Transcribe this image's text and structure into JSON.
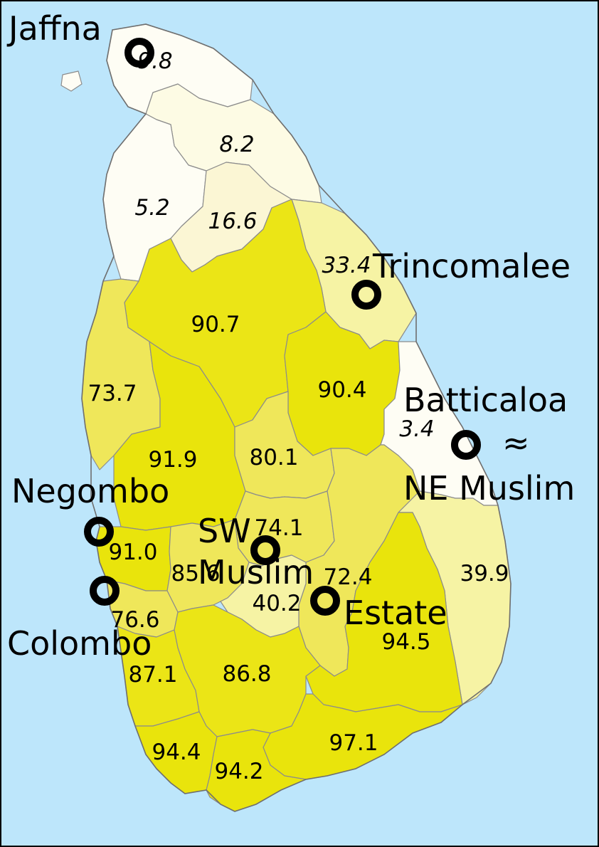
{
  "colors": {
    "sea": "#bde6fb",
    "very_low": "#fefdf4",
    "low": "#fdfbe4",
    "low_mid": "#fbf6d4",
    "mid": "#f6f3a4",
    "mid_high": "#efe75a",
    "high": "#ebe516",
    "highest": "#e9e40c"
  },
  "regions": [
    {
      "id": "jaffna",
      "value": "9.8",
      "italic": true
    },
    {
      "id": "kilinochchi-mullaitivu",
      "value": "8.2",
      "italic": true
    },
    {
      "id": "mannar",
      "value": "5.2",
      "italic": true
    },
    {
      "id": "vavuniya",
      "value": "16.6",
      "italic": true
    },
    {
      "id": "trincomalee",
      "value": "33.4",
      "italic": true
    },
    {
      "id": "anuradhapura",
      "value": "90.7",
      "italic": false
    },
    {
      "id": "puttalam",
      "value": "73.7",
      "italic": false
    },
    {
      "id": "polonnaruwa",
      "value": "90.4",
      "italic": false
    },
    {
      "id": "batticaloa",
      "value": "3.4",
      "italic": true
    },
    {
      "id": "kurunegala",
      "value": "91.9",
      "italic": false
    },
    {
      "id": "matale",
      "value": "80.1",
      "italic": false
    },
    {
      "id": "kandy",
      "value": "74.1",
      "italic": false
    },
    {
      "id": "gampaha",
      "value": "91.0",
      "italic": false
    },
    {
      "id": "kegalle",
      "value": "85.6",
      "italic": false
    },
    {
      "id": "badulla",
      "value": "72.4",
      "italic": false
    },
    {
      "id": "nuwara-eliya",
      "value": "40.2",
      "italic": false
    },
    {
      "id": "ampara",
      "value": "39.9",
      "italic": false
    },
    {
      "id": "colombo",
      "value": "76.6",
      "italic": false
    },
    {
      "id": "monaragala",
      "value": "94.5",
      "italic": false
    },
    {
      "id": "kalutara",
      "value": "87.1",
      "italic": false
    },
    {
      "id": "ratnapura",
      "value": "86.8",
      "italic": false
    },
    {
      "id": "hambantota",
      "value": "97.1",
      "italic": false
    },
    {
      "id": "galle",
      "value": "94.4",
      "italic": false
    },
    {
      "id": "matara",
      "value": "94.2",
      "italic": false
    }
  ],
  "cities": {
    "jaffna": "Jaffna",
    "trincomalee": "Trincomalee",
    "batticaloa": "Batticaloa",
    "approx": "≈",
    "ne_muslim": "NE Muslim",
    "negombo": "Negombo",
    "sw": "SW",
    "muslim": "Muslim",
    "estate": "Estate",
    "colombo": "Colombo"
  }
}
